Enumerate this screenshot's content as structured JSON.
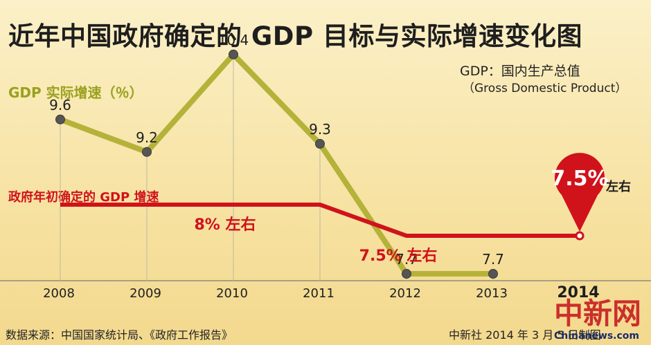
{
  "header": {
    "title": "近年中国政府确定的 GDP 目标与实际增速变化图"
  },
  "note": {
    "line1": "GDP：国内生产总值",
    "line2": "（Gross Domestic Product）"
  },
  "footer": {
    "source": "数据来源：中国国家统计局、《政府工作报告》",
    "credit": "中新社 2014 年 3 月 5 日制图"
  },
  "watermark": {
    "logo": "中新网",
    "url": "Chinanews.com"
  },
  "colors": {
    "actual_line": "#b5b23a",
    "target_line": "#d0121b",
    "point": "#555555",
    "grid": "#bdb8a4",
    "pin": "#d0121b"
  },
  "chart_data": {
    "type": "line",
    "x": [
      "2008",
      "2009",
      "2010",
      "2011",
      "2012",
      "2013",
      "2014"
    ],
    "highlight_x": "2014",
    "series": [
      {
        "name": "GDP 实际增速（％）",
        "values": [
          9.6,
          9.2,
          10.4,
          9.3,
          7.7,
          7.7,
          null
        ],
        "labels": [
          "9.6",
          "9.2",
          "10.4",
          "9.3",
          "7.7",
          "7.7",
          null
        ]
      },
      {
        "name": "政府年初确定的 GDP 增速",
        "values": [
          8,
          8,
          8,
          8,
          7.5,
          7.5,
          7.5
        ]
      }
    ],
    "annotations": [
      {
        "text": "8% 左右",
        "x": "2010"
      },
      {
        "text": "7.5% 左右",
        "x": "2012"
      }
    ],
    "pin": {
      "x": "2014",
      "value_text": "7.5%",
      "suffix": "左右"
    },
    "grid": "vertical"
  }
}
